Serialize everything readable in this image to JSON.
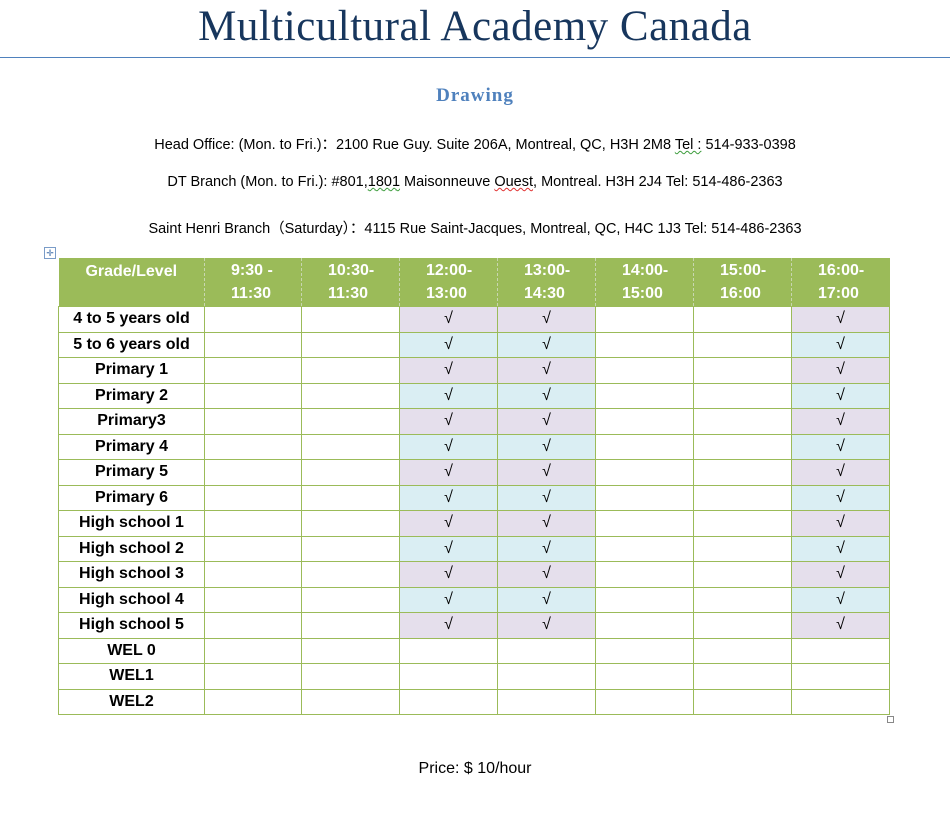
{
  "title": "Multicultural Academy Canada",
  "subtitle": "Drawing",
  "addresses": {
    "head_office": {
      "label": "Head Office: (Mon. to Fri.)：2100 Rue Guy. Suite 206A, Montreal, QC, H3H 2M8 ",
      "tel_word": "Tel :",
      "tel": " 514-933-0398"
    },
    "dt_branch": {
      "pre": "DT Branch (Mon. to Fri.):  #801,",
      "num": "1801",
      "mid": " Maisonneuve ",
      "ouest": "Ouest",
      "post": ", Montreal. H3H 2J4   Tel: 514-486-2363"
    },
    "saint_henri": "Saint Henri Branch（Saturday）：4115 Rue Saint-Jacques, Montreal, QC, H4C 1J3    Tel: 514-486-2363"
  },
  "colors": {
    "header": "#9bbb59",
    "row_purple": "#e5dfec",
    "row_blue": "#daeef3",
    "title": "#17365d",
    "subtitle": "#4f81bd"
  },
  "table": {
    "headers": [
      "Grade/Level",
      "9:30 - 11:30",
      "10:30-11:30",
      "12:00-13:00",
      "13:00-14:30",
      "14:00-15:00",
      "15:00-16:00",
      "16:00-17:00"
    ],
    "header_lines": [
      [
        "Grade/Level"
      ],
      [
        "9:30 -",
        "11:30"
      ],
      [
        "10:30-",
        "11:30"
      ],
      [
        "12:00-",
        "13:00"
      ],
      [
        "13:00-",
        "14:30"
      ],
      [
        "14:00-",
        "15:00"
      ],
      [
        "15:00-",
        "16:00"
      ],
      [
        "16:00-",
        "17:00"
      ]
    ],
    "rows": [
      {
        "level": "4 to 5 years old",
        "cells": [
          "",
          "",
          "√",
          "√",
          "",
          "",
          "√"
        ],
        "shade": "purple"
      },
      {
        "level": "5 to 6 years old",
        "cells": [
          "",
          "",
          "√",
          "√",
          "",
          "",
          "√"
        ],
        "shade": "blue"
      },
      {
        "level": "Primary 1",
        "cells": [
          "",
          "",
          "√",
          "√",
          "",
          "",
          "√"
        ],
        "shade": "purple"
      },
      {
        "level": "Primary 2",
        "cells": [
          "",
          "",
          "√",
          "√",
          "",
          "",
          "√"
        ],
        "shade": "blue"
      },
      {
        "level": "Primary3",
        "cells": [
          "",
          "",
          "√",
          "√",
          "",
          "",
          "√"
        ],
        "shade": "purple"
      },
      {
        "level": "Primary 4",
        "cells": [
          "",
          "",
          "√",
          "√",
          "",
          "",
          "√"
        ],
        "shade": "blue"
      },
      {
        "level": "Primary 5",
        "cells": [
          "",
          "",
          "√",
          "√",
          "",
          "",
          "√"
        ],
        "shade": "purple"
      },
      {
        "level": "Primary 6",
        "cells": [
          "",
          "",
          "√",
          "√",
          "",
          "",
          "√"
        ],
        "shade": "blue"
      },
      {
        "level": "High school 1",
        "cells": [
          "",
          "",
          "√",
          "√",
          "",
          "",
          "√"
        ],
        "shade": "purple"
      },
      {
        "level": "High school 2",
        "cells": [
          "",
          "",
          "√",
          "√",
          "",
          "",
          "√"
        ],
        "shade": "blue"
      },
      {
        "level": "High school 3",
        "cells": [
          "",
          "",
          "√",
          "√",
          "",
          "",
          "√"
        ],
        "shade": "purple"
      },
      {
        "level": "High school 4",
        "cells": [
          "",
          "",
          "√",
          "√",
          "",
          "",
          "√"
        ],
        "shade": "blue"
      },
      {
        "level": "High school 5",
        "cells": [
          "",
          "",
          "√",
          "√",
          "",
          "",
          "√"
        ],
        "shade": "purple"
      },
      {
        "level": "WEL 0",
        "cells": [
          "",
          "",
          "",
          "",
          "",
          "",
          ""
        ],
        "shade": "none"
      },
      {
        "level": "WEL1",
        "cells": [
          "",
          "",
          "",
          "",
          "",
          "",
          ""
        ],
        "shade": "none"
      },
      {
        "level": "WEL2",
        "cells": [
          "",
          "",
          "",
          "",
          "",
          "",
          ""
        ],
        "shade": "none"
      }
    ]
  },
  "price": "Price: $ 10/hour"
}
